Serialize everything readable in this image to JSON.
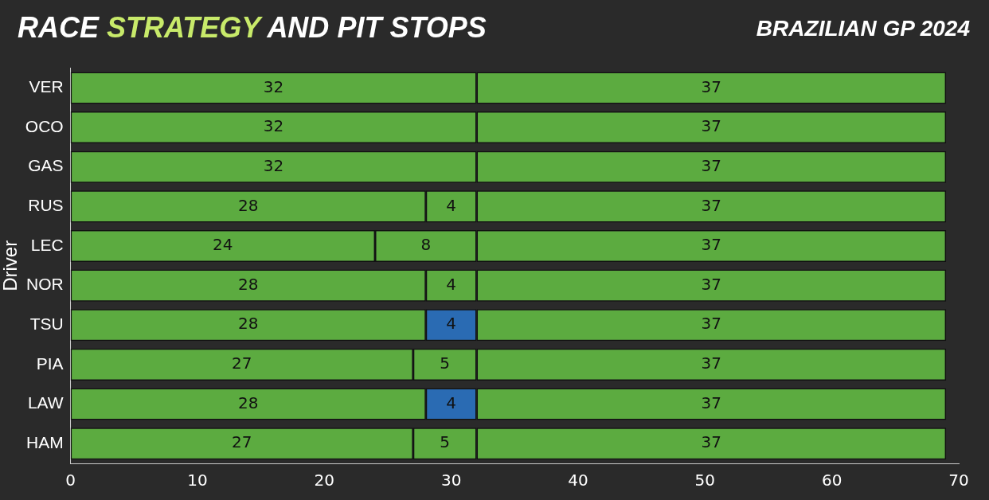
{
  "chart_data": {
    "type": "bar",
    "orientation": "horizontal",
    "stacked": true,
    "title": "RACE STRATEGY AND PIT STOPS",
    "subtitle": "BRAZILIAN GP 2024",
    "ylabel": "Driver",
    "categories": [
      "VER",
      "OCO",
      "GAS",
      "RUS",
      "LEC",
      "NOR",
      "TSU",
      "PIA",
      "LAW",
      "HAM"
    ],
    "series": [
      {
        "color": "#5cab40",
        "values": [
          32,
          32,
          32,
          28,
          24,
          28,
          28,
          27,
          28,
          27
        ]
      },
      {
        "colors": [
          "#5cab40",
          "#5cab40",
          "#5cab40",
          "#5cab40",
          "#5cab40",
          "#5cab40",
          "#2a6bb3",
          "#5cab40",
          "#2a6bb3",
          "#5cab40"
        ],
        "values": [
          null,
          null,
          null,
          4,
          8,
          4,
          4,
          5,
          4,
          5
        ]
      },
      {
        "color": "#5cab40",
        "values": [
          37,
          37,
          37,
          37,
          37,
          37,
          37,
          37,
          37,
          37
        ]
      }
    ],
    "xlim": [
      0,
      70
    ],
    "xticks": [
      0,
      10,
      20,
      30,
      40,
      50,
      60,
      70
    ],
    "grid": false,
    "legend": false,
    "data_labels": true
  }
}
